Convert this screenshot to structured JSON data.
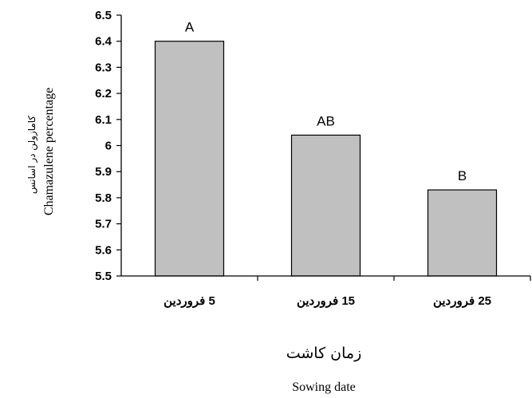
{
  "chart_data": {
    "type": "bar",
    "categories": [
      "5 فروردین",
      "15 فروردین",
      "25 فروردین"
    ],
    "values": [
      6.4,
      6.04,
      5.83
    ],
    "data_labels": [
      "A",
      "AB",
      "B"
    ],
    "ylim": [
      5.5,
      6.5
    ],
    "yticks": [
      "5.5",
      "5.6",
      "5.7",
      "5.8",
      "5.9",
      "6",
      "6.1",
      "6.2",
      "6.3",
      "6.4",
      "6.5"
    ],
    "ylabel_fa": "کامازولن در اسانس",
    "ylabel": "Chamazulene percentage",
    "xlabel_fa": "زمان کاشت",
    "xlabel": "Sowing date",
    "grid": false,
    "bar_color": "#c0c0c0"
  }
}
